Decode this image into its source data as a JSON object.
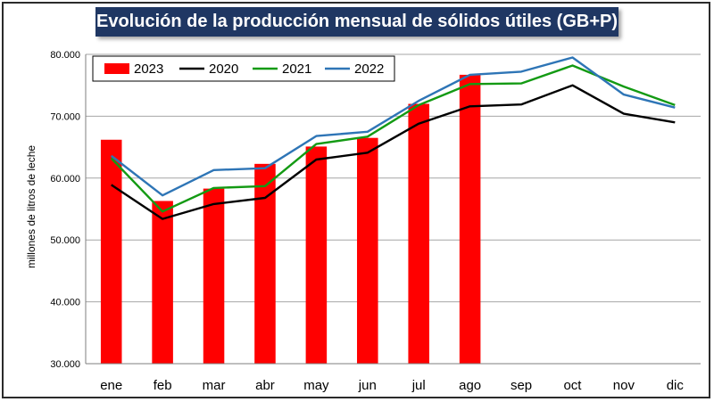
{
  "chart_data": {
    "type": "bar",
    "title": "Evolución de la producción mensual de sólidos útiles (GB+P)",
    "ylabel": "millones de litros de leche",
    "xlabel": "",
    "ylim": [
      30000,
      80000
    ],
    "yticks": [
      30000,
      40000,
      50000,
      60000,
      70000,
      80000
    ],
    "ytick_labels": [
      "30.000",
      "40.000",
      "50.000",
      "60.000",
      "70.000",
      "80.000"
    ],
    "grid": "horizontal",
    "legend_position": "top-left",
    "categories": [
      "ene",
      "feb",
      "mar",
      "abr",
      "may",
      "jun",
      "jul",
      "ago",
      "sep",
      "oct",
      "nov",
      "dic"
    ],
    "series": [
      {
        "name": "2023",
        "kind": "bar",
        "color": "#ff0000",
        "values": [
          66200,
          56300,
          58300,
          62300,
          65100,
          66500,
          72000,
          76700,
          null,
          null,
          null,
          null
        ]
      },
      {
        "name": "2020",
        "kind": "line",
        "color": "#000000",
        "values": [
          58900,
          53400,
          55800,
          56800,
          63000,
          64100,
          68800,
          71600,
          71900,
          75000,
          70400,
          69000
        ]
      },
      {
        "name": "2021",
        "kind": "line",
        "color": "#139a13",
        "values": [
          63200,
          54600,
          58400,
          58700,
          65500,
          66700,
          71800,
          75200,
          75300,
          78200,
          74800,
          71800
        ]
      },
      {
        "name": "2022",
        "kind": "line",
        "color": "#2e75b6",
        "values": [
          63600,
          57200,
          61300,
          61600,
          66800,
          67500,
          72500,
          76700,
          77200,
          79500,
          73500,
          71400
        ]
      }
    ]
  }
}
